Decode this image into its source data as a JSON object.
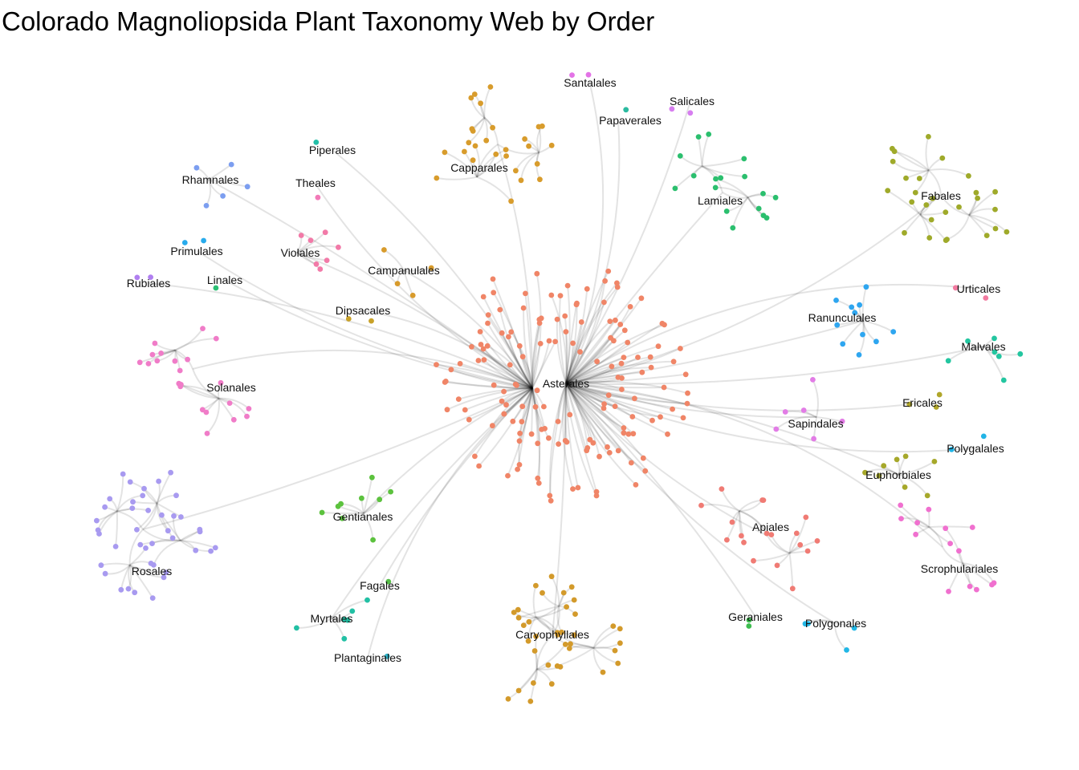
{
  "title": "Colorado Magnoliopsida Plant Taxonomy Web by Order",
  "hub": "Asterales",
  "colors": {
    "Asterales": "#F08567",
    "Fabales": "#9FAA2A",
    "Capparales": "#D89C2C",
    "Caryophyllales": "#D39A2B",
    "Lamiales": "#2BBF6E",
    "Rosales": "#A89AF0",
    "Solanales": "#F07CC8",
    "Apiales": "#F07B74",
    "Scrophulariales": "#F070CF",
    "Ranunculales": "#2EA6F0",
    "Malvales": "#23C6A0",
    "Euphorbiales": "#A6A82A",
    "Gentianales": "#5CC23E",
    "Myrtales": "#22C0A4",
    "Polygonales": "#22B7E6",
    "Violales": "#F27AA8",
    "Rhamnales": "#7C9EF0",
    "Salicales": "#D77EF0",
    "Santalales": "#E373E6",
    "Urticales": "#F27AA0",
    "Polygalales": "#22B4E6",
    "Ericales": "#B0A62A",
    "Sapindales": "#E27CE6",
    "Geraniales": "#3DBD4F",
    "Plantaginales": "#2EB3C8",
    "Fagales": "#56BE48",
    "Dipsacales": "#C8A128",
    "Campanulales": "#D89B2C",
    "Linales": "#2BBF74",
    "Primulales": "#28ABEC",
    "Rubiales": "#B07FF0",
    "Piperales": "#23BFA8",
    "Theales": "#F27AB8",
    "Papaverales": "#2BBAA0"
  },
  "orders": [
    {
      "name": "Santalales",
      "size": 2
    },
    {
      "name": "Salicales",
      "size": 2
    },
    {
      "name": "Papaverales",
      "size": 1
    },
    {
      "name": "Capparales",
      "size": 27
    },
    {
      "name": "Piperales",
      "size": 1
    },
    {
      "name": "Rhamnales",
      "size": 5
    },
    {
      "name": "Theales",
      "size": 1
    },
    {
      "name": "Lamiales",
      "size": 17
    },
    {
      "name": "Fabales",
      "size": 27
    },
    {
      "name": "Primulales",
      "size": 2
    },
    {
      "name": "Violales",
      "size": 7
    },
    {
      "name": "Campanulales",
      "size": 4
    },
    {
      "name": "Rubiales",
      "size": 2
    },
    {
      "name": "Linales",
      "size": 1
    },
    {
      "name": "Dipsacales",
      "size": 2
    },
    {
      "name": "Urticales",
      "size": 2
    },
    {
      "name": "Ranunculales",
      "size": 11
    },
    {
      "name": "Malvales",
      "size": 7
    },
    {
      "name": "Solanales",
      "size": 22
    },
    {
      "name": "Ericales",
      "size": 3
    },
    {
      "name": "Sapindales",
      "size": 6
    },
    {
      "name": "Polygalales",
      "size": 2
    },
    {
      "name": "Euphorbiales",
      "size": 8
    },
    {
      "name": "Rosales",
      "size": 40
    },
    {
      "name": "Gentianales",
      "size": 9
    },
    {
      "name": "Apiales",
      "size": 18
    },
    {
      "name": "Scrophulariales",
      "size": 14
    },
    {
      "name": "Fagales",
      "size": 1
    },
    {
      "name": "Myrtales",
      "size": 6
    },
    {
      "name": "Caryophyllales",
      "size": 38
    },
    {
      "name": "Geraniales",
      "size": 2
    },
    {
      "name": "Polygonales",
      "size": 4
    },
    {
      "name": "Plantaginales",
      "size": 1
    },
    {
      "name": "Asterales",
      "size": 150
    }
  ]
}
